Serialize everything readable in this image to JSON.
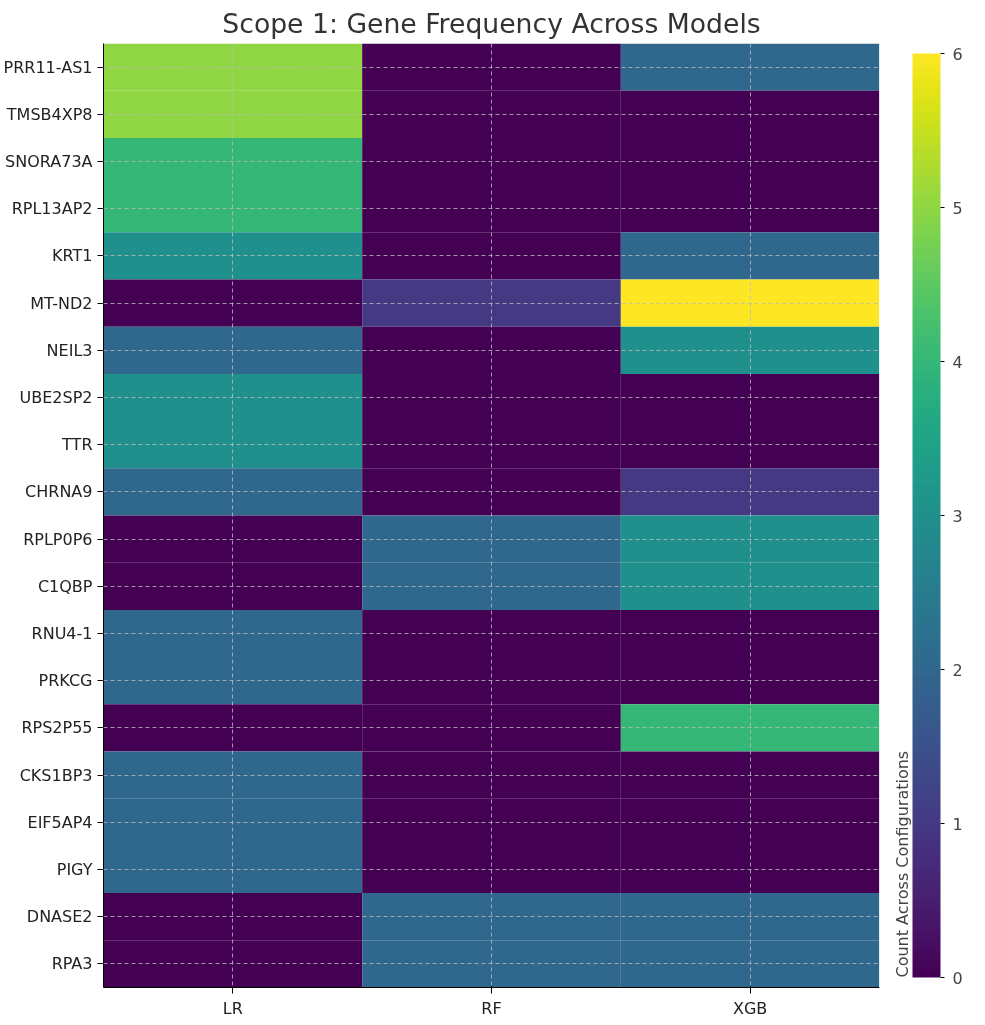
{
  "chart_data": {
    "type": "heatmap",
    "title": "Scope 1: Gene Frequency Across Models",
    "categories": [
      "LR",
      "RF",
      "XGB"
    ],
    "y_categories": [
      "PRR11-AS1",
      "TMSB4XP8",
      "SNORA73A",
      "RPL13AP2",
      "KRT1",
      "MT-ND2",
      "NEIL3",
      "UBE2SP2",
      "TTR",
      "CHRNA9",
      "RPLP0P6",
      "C1QBP",
      "RNU4-1",
      "PRKCG",
      "RPS2P55",
      "CKS1BP3",
      "EIF5AP4",
      "PIGY",
      "DNASE2",
      "RPA3"
    ],
    "cells": [
      [
        5,
        0,
        2
      ],
      [
        5,
        0,
        0
      ],
      [
        4,
        0,
        0
      ],
      [
        4,
        0,
        0
      ],
      [
        3,
        0,
        2
      ],
      [
        0,
        1,
        6
      ],
      [
        2,
        0,
        3
      ],
      [
        3,
        0,
        0
      ],
      [
        3,
        0,
        0
      ],
      [
        2,
        0,
        1
      ],
      [
        0,
        2,
        3
      ],
      [
        0,
        2,
        3
      ],
      [
        2,
        0,
        0
      ],
      [
        2,
        0,
        0
      ],
      [
        0,
        0,
        4
      ],
      [
        2,
        0,
        0
      ],
      [
        2,
        0,
        0
      ],
      [
        2,
        0,
        0
      ],
      [
        0,
        2,
        2
      ],
      [
        0,
        2,
        2
      ]
    ],
    "clim": [
      0,
      6
    ],
    "cticks": [
      0,
      1,
      2,
      3,
      4,
      5,
      6
    ],
    "clabel": "Count Across Configurations",
    "grid": true
  }
}
